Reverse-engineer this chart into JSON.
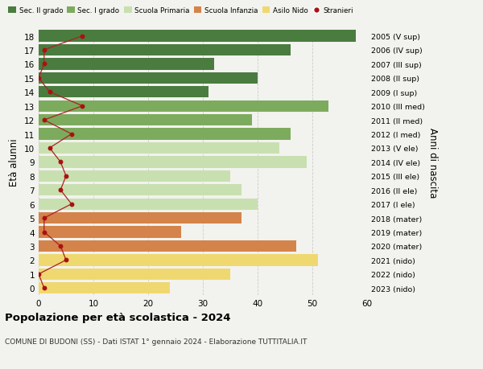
{
  "ages": [
    18,
    17,
    16,
    15,
    14,
    13,
    12,
    11,
    10,
    9,
    8,
    7,
    6,
    5,
    4,
    3,
    2,
    1,
    0
  ],
  "values": [
    58,
    46,
    32,
    40,
    31,
    53,
    39,
    46,
    44,
    49,
    35,
    37,
    40,
    37,
    26,
    47,
    51,
    35,
    24
  ],
  "bar_colors": [
    "#4a7c3f",
    "#4a7c3f",
    "#4a7c3f",
    "#4a7c3f",
    "#4a7c3f",
    "#7dab5e",
    "#7dab5e",
    "#7dab5e",
    "#c8e0b0",
    "#c8e0b0",
    "#c8e0b0",
    "#c8e0b0",
    "#c8e0b0",
    "#d4834a",
    "#d4834a",
    "#d4834a",
    "#f0d870",
    "#f0d870",
    "#f0d870"
  ],
  "stranieri_x": [
    8,
    1,
    1,
    0,
    2,
    8,
    1,
    6,
    2,
    4,
    5,
    4,
    6,
    1,
    1,
    4,
    5,
    0,
    1
  ],
  "right_labels": [
    "2005 (V sup)",
    "2006 (IV sup)",
    "2007 (III sup)",
    "2008 (II sup)",
    "2009 (I sup)",
    "2010 (III med)",
    "2011 (II med)",
    "2012 (I med)",
    "2013 (V ele)",
    "2014 (IV ele)",
    "2015 (III ele)",
    "2016 (II ele)",
    "2017 (I ele)",
    "2018 (mater)",
    "2019 (mater)",
    "2020 (mater)",
    "2021 (nido)",
    "2022 (nido)",
    "2023 (nido)"
  ],
  "legend_labels": [
    "Sec. II grado",
    "Sec. I grado",
    "Scuola Primaria",
    "Scuola Infanzia",
    "Asilo Nido",
    "Stranieri"
  ],
  "legend_colors": [
    "#4a7c3f",
    "#7dab5e",
    "#c8e0b0",
    "#d4834a",
    "#f0d870",
    "#b22222"
  ],
  "title": "Popolazione per età scolastica - 2024",
  "subtitle": "COMUNE DI BUDONI (SS) - Dati ISTAT 1° gennaio 2024 - Elaborazione TUTTITALIA.IT",
  "ylabel_left": "Età alunni",
  "ylabel_right": "Anni di nascita",
  "xlim": [
    0,
    60
  ],
  "background_color": "#f2f2ee",
  "grid_color": "#cccccc",
  "stranieri_color": "#aa1111",
  "stranieri_line_color": "#aa2222"
}
